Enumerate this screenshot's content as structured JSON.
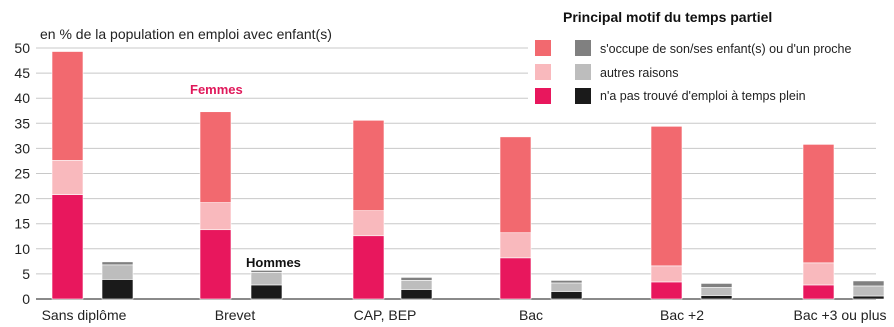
{
  "chart_data": {
    "type": "bar",
    "stacked": true,
    "unit_label": "en % de la population en emploi avec enfant(s)",
    "ylim": [
      0,
      50
    ],
    "yticks": [
      "0",
      "5",
      "10",
      "15",
      "20",
      "25",
      "30",
      "35",
      "40",
      "45",
      "50"
    ],
    "grid": true,
    "categories": [
      "Sans diplôme",
      "Brevet",
      "CAP, BEP",
      "Bac",
      "Bac +2",
      "Bac +3 ou plus"
    ],
    "legend": {
      "title": "Principal motif du temps partiel",
      "entries": [
        "s'occupe de son/ses enfant(s) ou d'un proche",
        "autres raisons",
        "n'a pas trouvé d'emploi à temps plein"
      ],
      "placement": "top-right"
    },
    "annotations": {
      "femmes": "Femmes",
      "hommes": "Hommes"
    },
    "groups": [
      {
        "name": "Femmes",
        "colors": [
          "#e8175d",
          "#f9b9bd",
          "#f2696f"
        ],
        "series": [
          {
            "name": "n'a pas trouvé d'emploi à temps plein",
            "values": [
              20.8,
              13.8,
              12.6,
              8.2,
              3.4,
              2.8
            ]
          },
          {
            "name": "autres raisons",
            "values": [
              6.8,
              5.4,
              5.0,
              5.0,
              3.2,
              4.4
            ]
          },
          {
            "name": "s'occupe de son/ses enfant(s) ou d'un proche",
            "values": [
              21.7,
              18.1,
              18.0,
              19.1,
              27.8,
              23.6
            ]
          }
        ]
      },
      {
        "name": "Hommes",
        "colors": [
          "#1a1a1a",
          "#bdbdbd",
          "#808080"
        ],
        "series": [
          {
            "name": "n'a pas trouvé d'emploi à temps plein",
            "values": [
              3.9,
              2.8,
              1.9,
              1.5,
              0.7,
              0.6
            ]
          },
          {
            "name": "autres raisons",
            "values": [
              2.9,
              2.5,
              1.8,
              1.7,
              1.6,
              2.0
            ]
          },
          {
            "name": "s'occupe de son/ses enfant(s) ou d'un proche",
            "values": [
              0.6,
              0.4,
              0.6,
              0.5,
              0.8,
              1.0
            ]
          }
        ]
      }
    ]
  }
}
